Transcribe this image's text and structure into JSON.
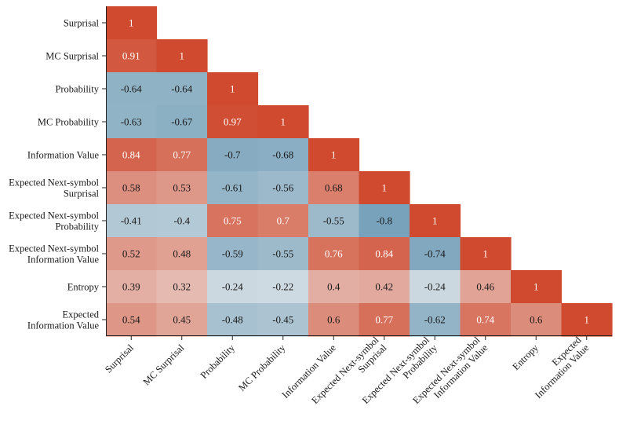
{
  "chart_data": {
    "type": "heatmap",
    "title": "",
    "xlabel": "",
    "ylabel": "",
    "variables": [
      [
        "Surprisal"
      ],
      [
        "MC Surprisal"
      ],
      [
        "Probability"
      ],
      [
        "MC Probability"
      ],
      [
        "Information Value"
      ],
      [
        "Expected Next-symbol",
        "Surprisal"
      ],
      [
        "Expected Next-symbol",
        "Probability"
      ],
      [
        "Expected Next-symbol",
        "Information Value"
      ],
      [
        "Entropy"
      ],
      [
        "Expected",
        "Information Value"
      ]
    ],
    "values": [
      [
        1
      ],
      [
        0.91,
        1
      ],
      [
        -0.64,
        -0.64,
        1
      ],
      [
        -0.63,
        -0.67,
        0.97,
        1
      ],
      [
        0.84,
        0.77,
        -0.7,
        -0.68,
        1
      ],
      [
        0.58,
        0.53,
        -0.61,
        -0.56,
        0.68,
        1
      ],
      [
        -0.41,
        -0.4,
        0.75,
        0.7,
        -0.55,
        -0.8,
        1
      ],
      [
        0.52,
        0.48,
        -0.59,
        -0.55,
        0.76,
        0.84,
        -0.74,
        1
      ],
      [
        0.39,
        0.32,
        -0.24,
        -0.22,
        0.4,
        0.42,
        -0.24,
        0.46,
        1
      ],
      [
        0.54,
        0.45,
        -0.48,
        -0.45,
        0.6,
        0.77,
        -0.62,
        0.74,
        0.6,
        1
      ]
    ],
    "mask": "upper-triangle",
    "colormap": {
      "negative": "#5a8fae",
      "center": "#efefef",
      "positive": "#cf4a2e",
      "vmin": -1,
      "vmax": 1
    }
  }
}
